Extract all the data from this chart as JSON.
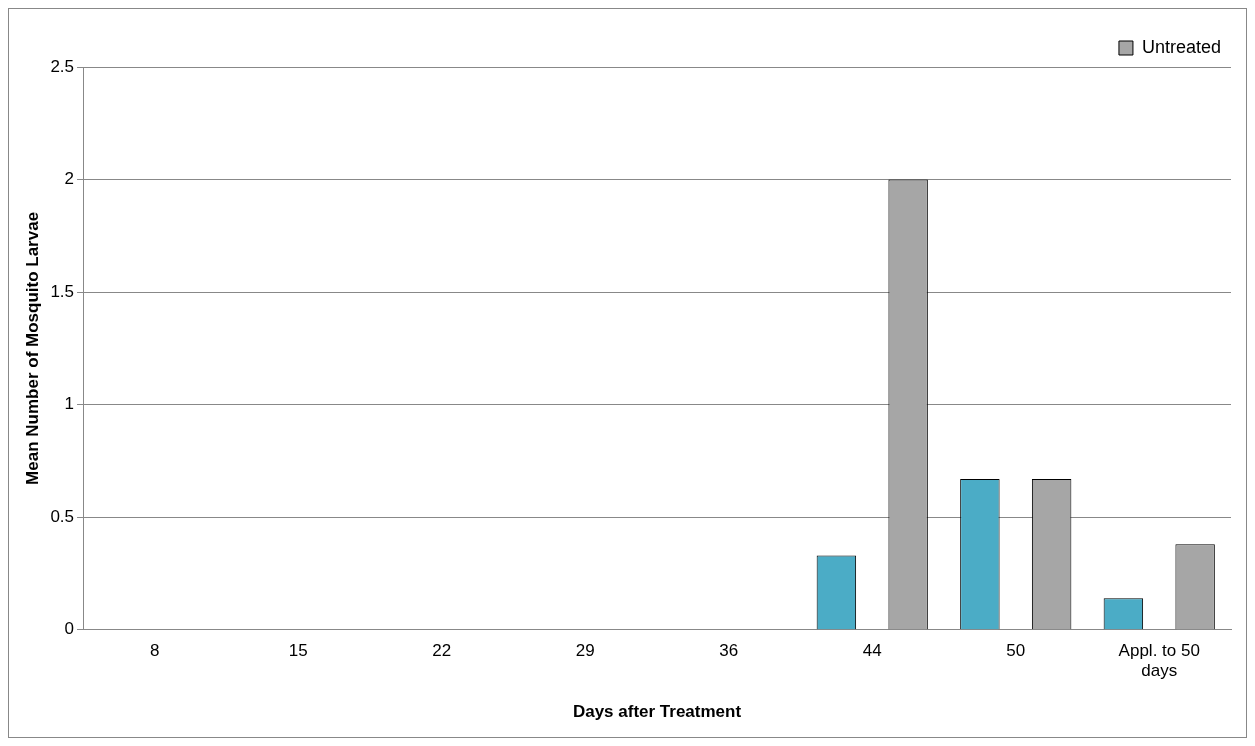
{
  "chart_data": {
    "type": "bar",
    "xlabel": "Days after Treatment",
    "ylabel": "Mean Number of Mosquito Larvae",
    "categories": [
      "8",
      "15",
      "22",
      "29",
      "36",
      "44",
      "50",
      "Appl. to 50 days"
    ],
    "series": [
      {
        "color": "#4bacc6",
        "values": [
          0,
          0,
          0,
          0,
          0,
          0.33,
          0.67,
          0.14
        ]
      },
      {
        "name": "Untreated",
        "color": "#a6a6a6",
        "values": [
          0,
          0,
          0,
          0,
          0,
          2,
          0.67,
          0.38
        ]
      }
    ],
    "ylim": [
      0,
      2.5
    ],
    "yticks": [
      0,
      0.5,
      1,
      1.5,
      2,
      2.5
    ],
    "grid": "y",
    "legend": "top right"
  }
}
